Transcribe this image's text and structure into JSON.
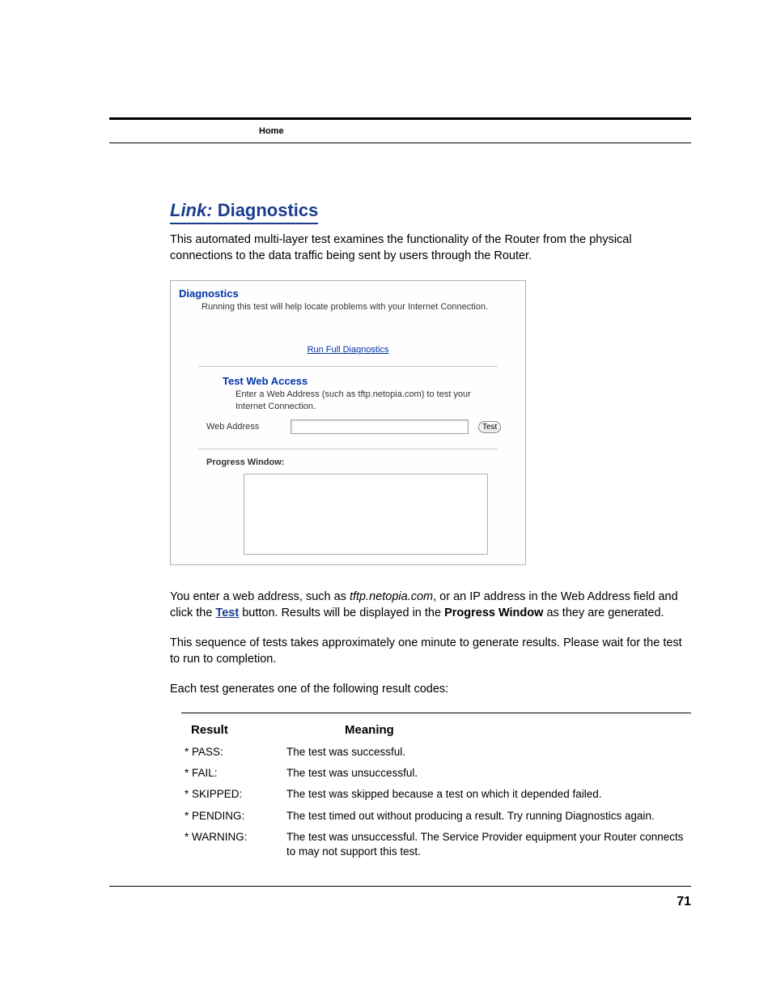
{
  "colors": {
    "link_blue": "#1a3d8f",
    "box_border": "#b0b0b0",
    "text": "#000000",
    "bg": "#ffffff"
  },
  "header": {
    "section": "Home"
  },
  "section": {
    "link_prefix": "Link:",
    "title": "Diagnostics"
  },
  "intro": "This automated multi-layer test examines the functionality of the Router from the physical connections to the data traffic being sent by users through the Router.",
  "diag_panel": {
    "title": "Diagnostics",
    "subtitle": "Running this test will help locate problems with your Internet Connection.",
    "run_link": "Run Full Diagnostics",
    "test_web_title": "Test Web Access",
    "test_web_desc": "Enter a Web Address (such as tftp.netopia.com) to test your Internet Connection.",
    "web_address_label": "Web Address",
    "web_address_value": "",
    "test_button": "Test",
    "progress_label": "Progress Window:"
  },
  "para1": {
    "part1": "You enter a web address, such as ",
    "italic": "tftp.netopia.com",
    "part2": ", or an IP address in the Web Address field and click the ",
    "link_word": "Test",
    "part3": " button. Results will be displayed in the ",
    "bold": "Progress Window",
    "part4": " as they are generated."
  },
  "para2": "This sequence of tests takes approximately one minute to generate results. Please wait for the test to run to completion.",
  "para3": "Each test generates one of the following result codes:",
  "results_table": {
    "header_result": "Result",
    "header_meaning": "Meaning",
    "rows": [
      {
        "code": "* PASS:",
        "meaning": "The test was successful."
      },
      {
        "code": "* FAIL:",
        "meaning": "The test was unsuccessful."
      },
      {
        "code": "* SKIPPED:",
        "meaning": "The test was skipped because a test on which it depended failed."
      },
      {
        "code": "* PENDING:",
        "meaning": "The test timed out without producing a result. Try running Diagnostics again."
      },
      {
        "code": "* WARNING:",
        "meaning": "The test was unsuccessful. The Service Provider equipment your Router connects to may not support this test."
      }
    ]
  },
  "page_number": "71"
}
